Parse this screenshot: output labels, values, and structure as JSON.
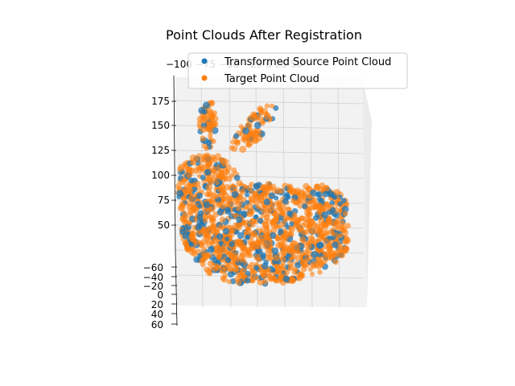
{
  "chart_data": {
    "type": "scatter",
    "projection": "3d",
    "title": "Point Clouds After Registration",
    "legend": {
      "placement": "top-right",
      "entries": [
        "Transformed Source Point Cloud",
        "Target Point Cloud"
      ]
    },
    "z_ticks": [
      "50",
      "75",
      "100",
      "125",
      "150",
      "175"
    ],
    "y_ticks": [
      "−60",
      "−40",
      "−20",
      "0",
      "20",
      "40",
      "60"
    ],
    "x_ticks_top": "−100 −75 −50 −25 0 25 50",
    "series": [
      {
        "name": "Transformed Source Point Cloud",
        "color": "#1f77b4",
        "shape": "bunny",
        "z_range": [
          30,
          180
        ]
      },
      {
        "name": "Target Point Cloud",
        "color": "#ff7f0e",
        "shape": "bunny",
        "z_range": [
          30,
          180
        ]
      }
    ],
    "zlim": [
      30,
      185
    ],
    "ylim": [
      -70,
      60
    ],
    "grid": true
  }
}
